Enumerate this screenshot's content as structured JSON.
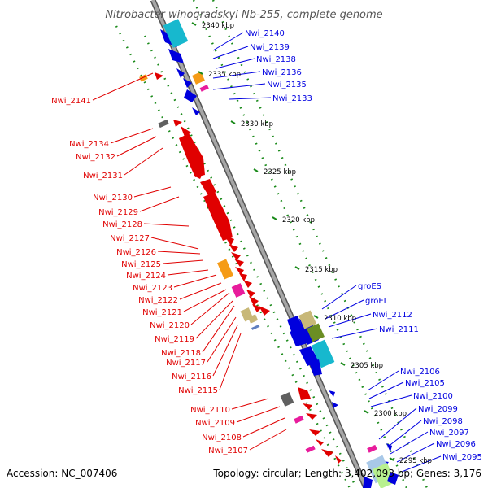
{
  "title": "Nitrobacter winogradskyi Nb-255, complete genome",
  "footer": {
    "accession": "Accession: NC_007406",
    "summary": "Topology: circular; Length: 3,402,093 bp; Genes: 3,176"
  },
  "colors": {
    "backbone": "#8a8a8a",
    "dots": "#1a8a1a",
    "label_left": "#e00000",
    "label_right": "#0000e0"
  },
  "kbp_labels": [
    "2340 kbp",
    "2335 kbp",
    "2330 kbp",
    "2325 kbp",
    "2320 kbp",
    "2315 kbp",
    "2310 kbp",
    "2305 kbp",
    "2300 kbp",
    "2295 kbp"
  ],
  "left_genes": [
    "Nwi_2141",
    "Nwi_2134",
    "Nwi_2132",
    "Nwi_2131",
    "Nwi_2130",
    "Nwi_2129",
    "Nwi_2128",
    "Nwi_2127",
    "Nwi_2126",
    "Nwi_2125",
    "Nwi_2124",
    "Nwi_2123",
    "Nwi_2122",
    "Nwi_2121",
    "Nwi_2120",
    "Nwi_2119",
    "Nwi_2118",
    "Nwi_2117",
    "Nwi_2116",
    "Nwi_2115",
    "Nwi_2110",
    "Nwi_2109",
    "Nwi_2108",
    "Nwi_2107"
  ],
  "right_genes": [
    "Nwi_2140",
    "Nwi_2139",
    "Nwi_2138",
    "Nwi_2136",
    "Nwi_2135",
    "Nwi_2133",
    "groES",
    "groEL",
    "Nwi_2112",
    "Nwi_2111",
    "Nwi_2106",
    "Nwi_2105",
    "Nwi_2100",
    "Nwi_2099",
    "Nwi_2098",
    "Nwi_2097",
    "Nwi_2096",
    "Nwi_2095"
  ]
}
